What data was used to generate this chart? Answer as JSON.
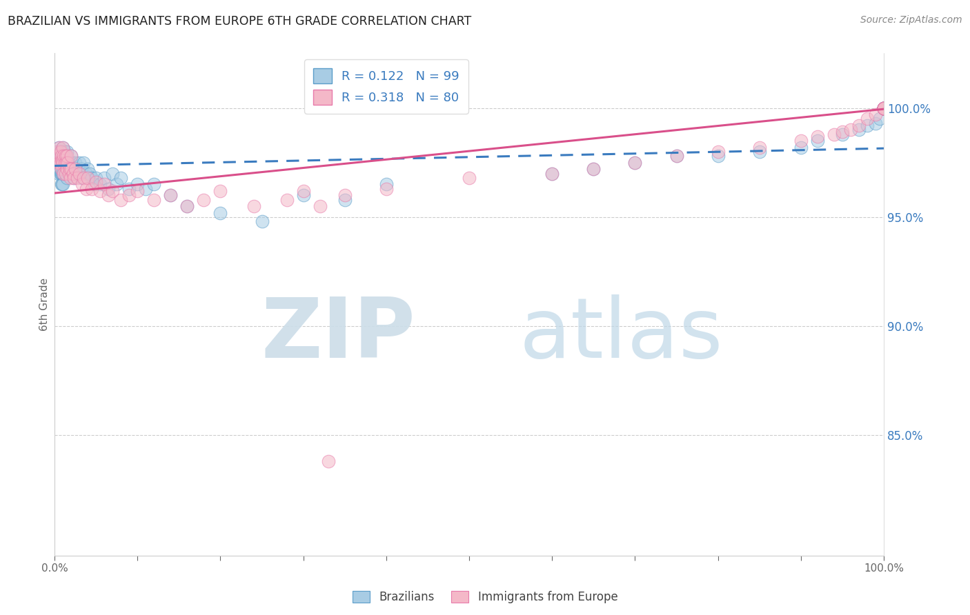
{
  "title": "BRAZILIAN VS IMMIGRANTS FROM EUROPE 6TH GRADE CORRELATION CHART",
  "source": "Source: ZipAtlas.com",
  "ylabel": "6th Grade",
  "right_yticks": [
    85.0,
    90.0,
    95.0,
    100.0
  ],
  "R_blue": 0.122,
  "N_blue": 99,
  "R_pink": 0.318,
  "N_pink": 80,
  "blue_color": "#a8cce4",
  "pink_color": "#f4b8c8",
  "blue_edge_color": "#5b9dc9",
  "pink_edge_color": "#e87aaa",
  "blue_line_color": "#3a7bbf",
  "pink_line_color": "#d94f8a",
  "watermark_zip_color": "#cce0ef",
  "watermark_atlas_color": "#b8d4e8",
  "bottom_legend_blue": "Brazilians",
  "bottom_legend_pink": "Immigrants from Europe",
  "figsize": [
    14.06,
    8.92
  ],
  "dpi": 100,
  "xlim": [
    0.0,
    1.0
  ],
  "ylim": [
    0.795,
    1.025
  ],
  "blue_scatter_x": [
    0.002,
    0.003,
    0.004,
    0.004,
    0.005,
    0.005,
    0.005,
    0.006,
    0.006,
    0.006,
    0.007,
    0.007,
    0.007,
    0.008,
    0.008,
    0.008,
    0.008,
    0.009,
    0.009,
    0.009,
    0.009,
    0.01,
    0.01,
    0.01,
    0.01,
    0.01,
    0.011,
    0.011,
    0.012,
    0.012,
    0.013,
    0.013,
    0.014,
    0.015,
    0.015,
    0.015,
    0.016,
    0.018,
    0.019,
    0.02,
    0.02,
    0.021,
    0.022,
    0.023,
    0.025,
    0.026,
    0.028,
    0.03,
    0.032,
    0.033,
    0.035,
    0.038,
    0.04,
    0.042,
    0.045,
    0.048,
    0.05,
    0.055,
    0.06,
    0.065,
    0.07,
    0.075,
    0.08,
    0.09,
    0.1,
    0.11,
    0.12,
    0.14,
    0.16,
    0.2,
    0.25,
    0.3,
    0.35,
    0.4,
    0.6,
    0.65,
    0.7,
    0.75,
    0.8,
    0.85,
    0.9,
    0.92,
    0.95,
    0.97,
    0.98,
    0.99,
    0.995,
    1.0,
    1.0,
    1.0,
    1.0,
    1.0,
    1.0,
    1.0,
    1.0,
    1.0,
    1.0,
    1.0,
    1.0
  ],
  "blue_scatter_y": [
    0.98,
    0.975,
    0.978,
    0.972,
    0.982,
    0.975,
    0.97,
    0.98,
    0.975,
    0.972,
    0.978,
    0.975,
    0.97,
    0.98,
    0.975,
    0.97,
    0.965,
    0.98,
    0.975,
    0.97,
    0.965,
    0.982,
    0.978,
    0.975,
    0.97,
    0.965,
    0.978,
    0.972,
    0.98,
    0.975,
    0.978,
    0.972,
    0.975,
    0.98,
    0.975,
    0.968,
    0.975,
    0.972,
    0.975,
    0.978,
    0.972,
    0.975,
    0.97,
    0.968,
    0.975,
    0.972,
    0.97,
    0.975,
    0.972,
    0.968,
    0.975,
    0.97,
    0.972,
    0.97,
    0.968,
    0.965,
    0.968,
    0.965,
    0.968,
    0.963,
    0.97,
    0.965,
    0.968,
    0.963,
    0.965,
    0.963,
    0.965,
    0.96,
    0.955,
    0.952,
    0.948,
    0.96,
    0.958,
    0.965,
    0.97,
    0.972,
    0.975,
    0.978,
    0.978,
    0.98,
    0.982,
    0.985,
    0.988,
    0.99,
    0.992,
    0.993,
    0.995,
    1.0,
    1.0,
    1.0,
    1.0,
    1.0,
    1.0,
    1.0,
    1.0,
    1.0,
    1.0,
    1.0,
    1.0
  ],
  "pink_scatter_x": [
    0.003,
    0.004,
    0.005,
    0.006,
    0.006,
    0.007,
    0.007,
    0.008,
    0.008,
    0.009,
    0.01,
    0.01,
    0.011,
    0.011,
    0.012,
    0.013,
    0.013,
    0.014,
    0.015,
    0.015,
    0.016,
    0.017,
    0.018,
    0.019,
    0.02,
    0.02,
    0.022,
    0.023,
    0.025,
    0.027,
    0.03,
    0.033,
    0.035,
    0.038,
    0.04,
    0.045,
    0.05,
    0.055,
    0.06,
    0.065,
    0.07,
    0.08,
    0.09,
    0.1,
    0.12,
    0.14,
    0.16,
    0.18,
    0.2,
    0.24,
    0.28,
    0.3,
    0.32,
    0.35,
    0.4,
    0.5,
    0.6,
    0.65,
    0.7,
    0.75,
    0.8,
    0.85,
    0.9,
    0.92,
    0.94,
    0.95,
    0.96,
    0.97,
    0.98,
    0.99,
    1.0,
    1.0,
    1.0,
    1.0,
    1.0,
    1.0,
    1.0,
    1.0,
    1.0,
    0.33
  ],
  "pink_scatter_y": [
    0.98,
    0.975,
    0.978,
    0.982,
    0.975,
    0.98,
    0.975,
    0.978,
    0.972,
    0.976,
    0.982,
    0.975,
    0.978,
    0.97,
    0.975,
    0.978,
    0.97,
    0.975,
    0.978,
    0.972,
    0.975,
    0.97,
    0.972,
    0.968,
    0.978,
    0.972,
    0.97,
    0.968,
    0.972,
    0.968,
    0.97,
    0.965,
    0.968,
    0.963,
    0.968,
    0.963,
    0.966,
    0.962,
    0.965,
    0.96,
    0.962,
    0.958,
    0.96,
    0.962,
    0.958,
    0.96,
    0.955,
    0.958,
    0.962,
    0.955,
    0.958,
    0.962,
    0.955,
    0.96,
    0.963,
    0.968,
    0.97,
    0.972,
    0.975,
    0.978,
    0.98,
    0.982,
    0.985,
    0.987,
    0.988,
    0.989,
    0.99,
    0.992,
    0.995,
    0.997,
    1.0,
    1.0,
    1.0,
    1.0,
    1.0,
    1.0,
    1.0,
    1.0,
    1.0,
    0.838
  ],
  "blue_line_start_y": 0.9735,
  "blue_line_end_y": 0.9815,
  "pink_line_start_y": 0.961,
  "pink_line_end_y": 0.9995
}
